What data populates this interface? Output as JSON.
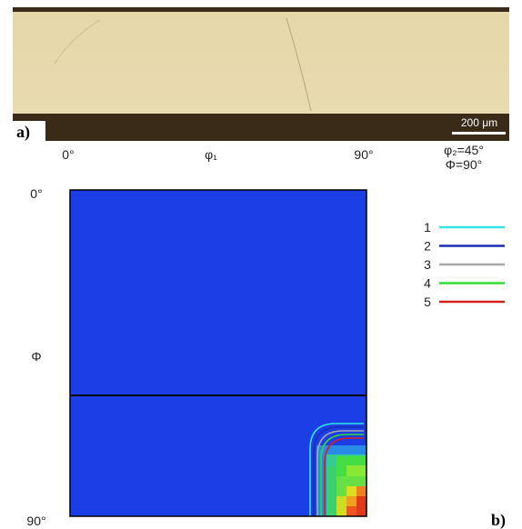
{
  "panel_a": {
    "label": "a)",
    "scale_bar": "200 μm"
  },
  "panel_b": {
    "label": "b)",
    "x_axis": {
      "start": "0°",
      "label": "φ₁",
      "end": "90°"
    },
    "y_axis": {
      "start": "0°",
      "label": "Φ",
      "end": "90°"
    },
    "section": {
      "line1": "φ₂=45°",
      "line2": "Φ=90°"
    },
    "legend": [
      {
        "label": "1",
        "color": "#33e4e4"
      },
      {
        "label": "2",
        "color": "#1a2fb0"
      },
      {
        "label": "3",
        "color": "#a8a8a8"
      },
      {
        "label": "4",
        "color": "#33dd33"
      },
      {
        "label": "5",
        "color": "#d42020"
      }
    ]
  }
}
